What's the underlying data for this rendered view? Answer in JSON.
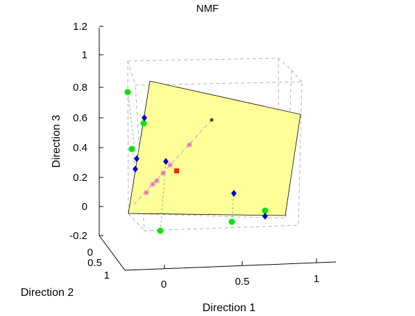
{
  "chart_data": {
    "type": "scatter3d",
    "title": "NMF",
    "xlabel": "Direction 1",
    "ylabel": "Direction 2",
    "zlabel": "Direction 3",
    "xlim": [
      0,
      1
    ],
    "ylim": [
      0,
      1
    ],
    "zlim": [
      -0.2,
      1.2
    ],
    "x_ticks": [
      "0",
      "0.5",
      "1"
    ],
    "y_ticks": [
      "0",
      "0.5",
      "1"
    ],
    "z_ticks": [
      "-0.2",
      "0",
      "0.2",
      "0.4",
      "0.6",
      "0.8",
      "1",
      "1.2"
    ],
    "grid": false,
    "colors": {
      "plane": "#ffff99",
      "green_points": "#00e600",
      "blue_points": "#0000cc",
      "stars": "#e060c0",
      "mean_point": "#ff2200",
      "projection_lines": "#66cc66",
      "axis_line": "#d890c0",
      "box_lines": "#b0b0b0"
    },
    "series": [
      {
        "marker": "green-circle",
        "points": [
          {
            "x": 0.0,
            "y": 0.3,
            "z": 0.8
          },
          {
            "x": 0.1,
            "y": 0.5,
            "z": 0.6
          },
          {
            "x": 0.0,
            "y": 0.5,
            "z": 0.4
          },
          {
            "x": 0.2,
            "y": 0.9,
            "z": 0.0
          },
          {
            "x": 0.9,
            "y": 0.4,
            "z": 0.05
          },
          {
            "x": 0.65,
            "y": 0.3,
            "z": -0.05
          }
        ]
      },
      {
        "marker": "blue-diamond",
        "points": [
          {
            "x": 0.1,
            "y": 0.4,
            "z": 0.6
          },
          {
            "x": 0.05,
            "y": 0.45,
            "z": 0.35
          },
          {
            "x": 0.05,
            "y": 0.5,
            "z": 0.25
          },
          {
            "x": 0.2,
            "y": 0.4,
            "z": 0.3
          },
          {
            "x": 0.9,
            "y": 0.4,
            "z": 0.0
          },
          {
            "x": 0.7,
            "y": 0.3,
            "z": 0.1
          }
        ]
      },
      {
        "marker": "pink-star",
        "points": [
          {
            "x": 0.2,
            "y": 0.6,
            "z": 0.1
          },
          {
            "x": 0.22,
            "y": 0.58,
            "z": 0.15
          },
          {
            "x": 0.25,
            "y": 0.56,
            "z": 0.18
          },
          {
            "x": 0.28,
            "y": 0.54,
            "z": 0.22
          },
          {
            "x": 0.31,
            "y": 0.52,
            "z": 0.27
          },
          {
            "x": 0.5,
            "y": 0.45,
            "z": 0.42
          }
        ]
      },
      {
        "marker": "red-square",
        "points": [
          {
            "x": 0.35,
            "y": 0.45,
            "z": 0.25
          }
        ]
      },
      {
        "marker": "dark-dot",
        "points": [
          {
            "x": 0.6,
            "y": 0.35,
            "z": 0.6
          }
        ]
      }
    ]
  }
}
